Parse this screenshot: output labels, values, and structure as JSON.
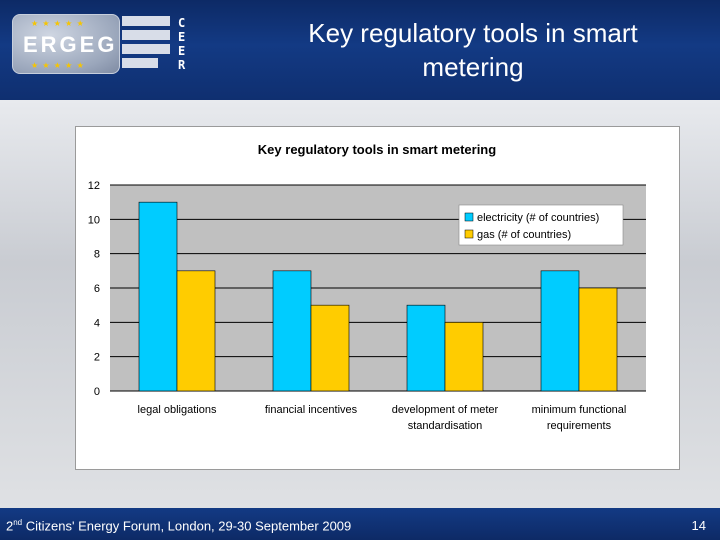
{
  "slide": {
    "title": "Key regulatory tools in smart metering",
    "footer_ordinal": "2",
    "footer_superscript": "nd",
    "footer_rest": " Citizens' Energy Forum, London, 29-30 September 2009",
    "page_number": "14"
  },
  "logos": {
    "ergeg_text": "ERGEG",
    "ceer_letters": [
      "C",
      "E",
      "E",
      "R"
    ]
  },
  "chart_data": {
    "type": "bar",
    "title": "Key regulatory tools in smart metering",
    "categories": [
      [
        "legal obligations"
      ],
      [
        "financial incentives"
      ],
      [
        "development of meter",
        "standardisation"
      ],
      [
        "minimum functional",
        "requirements"
      ]
    ],
    "series": [
      {
        "name": "electricity (# of countries)",
        "values": [
          11,
          7,
          5,
          7
        ],
        "color": "#00ccff"
      },
      {
        "name": "gas (# of countries)",
        "values": [
          7,
          5,
          4,
          6
        ],
        "color": "#ffcc00"
      }
    ],
    "ylim": [
      0,
      12
    ],
    "yticks": [
      0,
      2,
      4,
      6,
      8,
      10,
      12
    ],
    "grid": true,
    "legend_position": "top-right",
    "plot_background": "#c0c0c0"
  }
}
